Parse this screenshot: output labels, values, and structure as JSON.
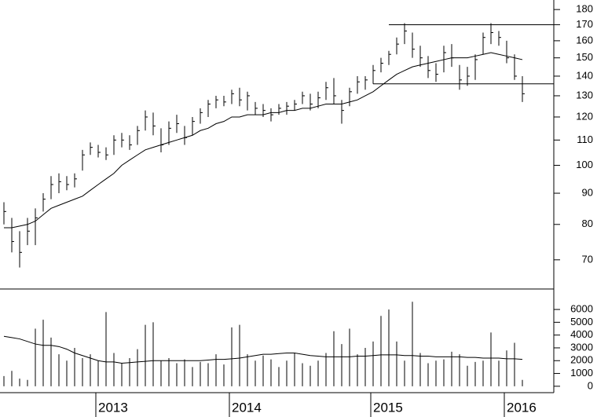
{
  "chart_data": [
    {
      "type": "ohlc",
      "log_scale": true,
      "color": "#000000",
      "ylim": [
        62.7,
        186.6
      ],
      "yticks": [
        70,
        80,
        90,
        100,
        110,
        120,
        130,
        140,
        150,
        160,
        170,
        180
      ],
      "high": [
        87,
        82,
        78,
        82,
        85,
        90,
        96,
        97,
        96,
        97,
        106,
        109,
        108,
        107,
        112,
        113,
        112,
        116,
        123,
        122,
        115,
        118,
        121,
        116,
        120,
        124,
        128,
        130,
        130,
        133,
        134,
        132,
        127,
        126,
        124,
        126,
        127,
        128,
        132,
        131,
        132,
        137,
        139,
        128,
        134,
        140,
        140,
        146,
        150,
        154,
        162,
        171,
        165,
        157,
        151,
        147,
        157,
        158,
        146,
        145,
        152,
        165,
        171,
        166,
        160,
        152,
        140
      ],
      "low": [
        80,
        72,
        68,
        74,
        74,
        84,
        88,
        90,
        91,
        92,
        98,
        104,
        103,
        102,
        104,
        107,
        106,
        108,
        114,
        112,
        105,
        108,
        113,
        108,
        112,
        117,
        120,
        124,
        125,
        126,
        125,
        123,
        121,
        120,
        118,
        121,
        121,
        123,
        126,
        123,
        124,
        128,
        126,
        117,
        125,
        131,
        133,
        136,
        142,
        146,
        152,
        158,
        150,
        145,
        139,
        137,
        142,
        145,
        133,
        135,
        138,
        152,
        158,
        157,
        147,
        138,
        127
      ],
      "close": [
        84,
        75,
        72,
        78,
        82,
        88,
        93,
        94,
        93,
        95,
        104,
        107,
        105,
        104,
        110,
        110,
        108,
        114,
        120,
        116,
        108,
        115,
        117,
        111,
        118,
        122,
        126,
        128,
        127,
        131,
        128,
        130,
        124,
        123,
        121,
        124,
        125,
        126,
        130,
        126,
        129,
        134,
        130,
        123,
        132,
        137,
        138,
        143,
        147,
        152,
        158,
        166,
        155,
        150,
        143,
        141,
        153,
        150,
        138,
        140,
        149,
        162,
        165,
        162,
        150,
        140,
        131
      ],
      "moving_average": [
        79,
        79,
        79.5,
        80,
        81,
        83,
        85,
        86,
        87,
        88,
        89,
        91,
        93,
        95,
        97,
        100,
        102,
        104,
        106,
        107,
        108,
        109,
        110,
        111,
        112,
        114,
        115,
        117,
        118,
        120,
        120,
        121,
        121,
        121,
        122,
        122,
        123,
        123,
        124,
        124,
        125,
        126,
        126,
        126,
        127,
        128,
        130,
        132,
        135,
        138,
        141,
        143,
        145,
        146,
        147,
        148,
        149,
        150,
        150,
        150,
        151,
        152,
        153,
        152,
        151,
        150,
        149
      ],
      "hlines": [
        {
          "value": 170,
          "from_index": 49
        },
        {
          "value": 136,
          "from_index": 47
        }
      ]
    },
    {
      "type": "volume",
      "color": "#000000",
      "ylim": [
        -500,
        7600
      ],
      "yticks": [
        0,
        1000,
        2000,
        3000,
        4000,
        5000,
        6000
      ],
      "categories": [
        null,
        null,
        null,
        null,
        null,
        null,
        null,
        null,
        null,
        null,
        null,
        null,
        "2013",
        null,
        null,
        null,
        null,
        null,
        null,
        null,
        null,
        null,
        null,
        null,
        null,
        null,
        null,
        null,
        null,
        "2014",
        null,
        null,
        null,
        null,
        null,
        null,
        null,
        null,
        null,
        null,
        null,
        null,
        null,
        null,
        null,
        null,
        null,
        "2015",
        null,
        null,
        null,
        null,
        null,
        null,
        null,
        null,
        null,
        null,
        null,
        null,
        null,
        null,
        null,
        null,
        "2016",
        null,
        null
      ],
      "values": [
        800,
        1200,
        600,
        500,
        4500,
        5200,
        3800,
        2500,
        2000,
        3000,
        2200,
        2500,
        2000,
        5800,
        2600,
        1800,
        2200,
        2900,
        4800,
        5000,
        2000,
        2200,
        1800,
        2100,
        1500,
        1900,
        1800,
        2500,
        1700,
        4600,
        4800,
        2500,
        2000,
        2400,
        2100,
        1500,
        2000,
        2600,
        1800,
        1600,
        2000,
        2600,
        4300,
        3300,
        4500,
        2500,
        3000,
        3500,
        5500,
        6000,
        3500,
        2000,
        6600,
        2600,
        1800,
        2000,
        2100,
        2700,
        2500,
        1600,
        1900,
        2000,
        4200,
        2000,
        2800,
        3400,
        500
      ],
      "moving_average": [
        3900,
        3800,
        3700,
        3500,
        3300,
        3200,
        3200,
        3100,
        2900,
        2600,
        2400,
        2200,
        2000,
        1900,
        1900,
        1800,
        1850,
        1900,
        1950,
        2000,
        2000,
        2000,
        2000,
        2000,
        2000,
        2000,
        2050,
        2100,
        2100,
        2150,
        2200,
        2300,
        2400,
        2500,
        2500,
        2550,
        2600,
        2600,
        2500,
        2400,
        2350,
        2300,
        2300,
        2300,
        2300,
        2350,
        2350,
        2400,
        2450,
        2450,
        2450,
        2400,
        2400,
        2350,
        2350,
        2300,
        2300,
        2300,
        2300,
        2250,
        2250,
        2200,
        2200,
        2200,
        2150,
        2150,
        2100
      ]
    }
  ]
}
